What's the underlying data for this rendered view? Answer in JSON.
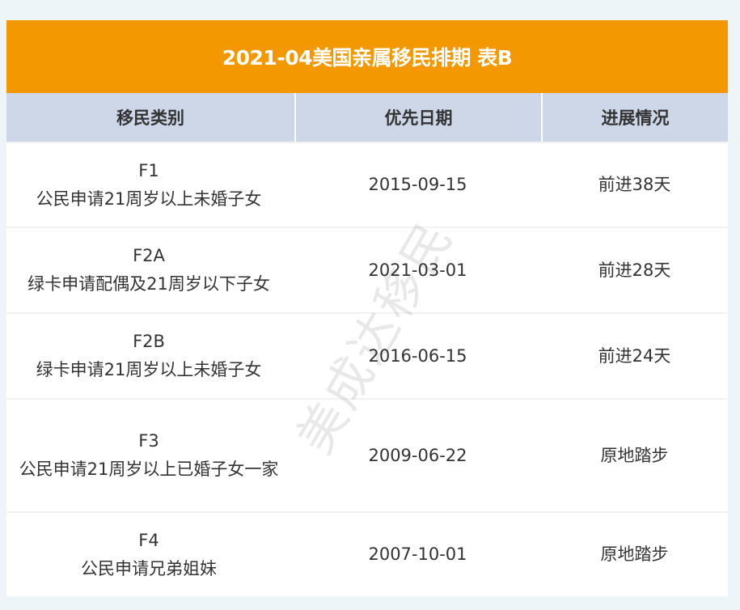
{
  "title": "2021-04美国亲属移民排期 表B",
  "headers": [
    "移民类别",
    "优先日期",
    "进展情况"
  ],
  "rows": [
    {
      "code": "F1",
      "desc": "公民申请21周岁以上未婚子女",
      "date": "2015-09-15",
      "status": "前进38天"
    },
    {
      "code": "F2A",
      "desc": "绿卡申请配偶及21周岁以下子女",
      "date": "2021-03-01",
      "status": "前进28天"
    },
    {
      "code": "F2B",
      "desc": "绿卡申请21周岁以上未婚子女",
      "date": "2016-06-15",
      "status": "前进24天"
    },
    {
      "code": "F3",
      "desc": "公民申请21周岁以上已婚子女一家",
      "date": "2009-06-22",
      "status": "原地踏步"
    },
    {
      "code": "F4",
      "desc": "公民申请兄弟姐妹",
      "date": "2007-10-01",
      "status": "原地踏步"
    }
  ],
  "watermark": "美成达移民",
  "colors": {
    "title_bg": "#f39800",
    "header_bg": "#cdd7e8"
  }
}
